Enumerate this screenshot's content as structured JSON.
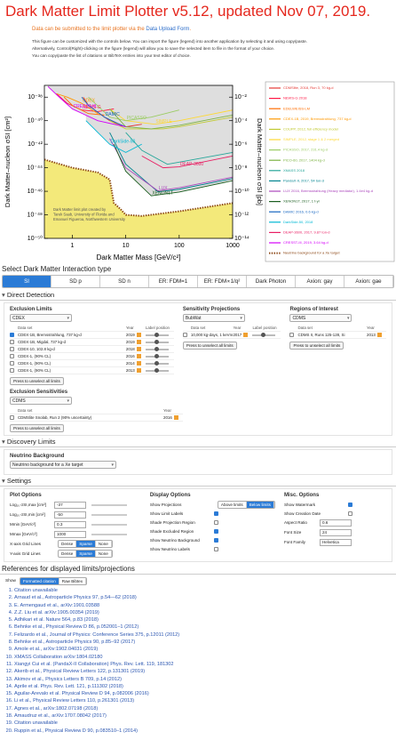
{
  "header": {
    "title": "Dark Matter Limit Plotter v5.12, updated Nov 07, 2019.",
    "upload_text": "Data can be submitted to the limit plotter via the",
    "upload_link": "Data Upload Form",
    "upload_end": ".",
    "intro": [
      "This figure can be customized with the controls below. You can import the figure (legend) into another application by selecting it and using copy/paste.",
      "Alternatively, Control(Right)-clicking on the figure (legend) will allow you to save the selected item to file in the format of your choice.",
      "You can copy/paste the list of citations or BibTeX entries into your text editor of choice."
    ]
  },
  "plot": {
    "xlabel": "Dark Matter Mass [GeV/c²]",
    "ylabel": "Dark Matter–nucleon σSI [cm²]",
    "y2label": "Dark Matter–nucleon σSI [pb]",
    "log_scale": true,
    "xlim": [
      0.3,
      1000
    ],
    "xticks": [
      1,
      10,
      100,
      1000
    ],
    "ylim": [
      1e-50,
      1e-37
    ],
    "yticks": [
      {
        "value": 1e-38,
        "label": "10⁻³⁸"
      },
      {
        "value": 1e-40,
        "label": "10⁻⁴⁰"
      },
      {
        "value": 1e-42,
        "label": "10⁻⁴²"
      },
      {
        "value": 1e-44,
        "label": "10⁻⁴⁴"
      },
      {
        "value": 1e-46,
        "label": "10⁻⁴⁶"
      },
      {
        "value": 1e-48,
        "label": "10⁻⁴⁸"
      },
      {
        "value": 1e-50,
        "label": "10⁻⁵⁰"
      }
    ],
    "y2lim": [
      1e-14,
      0.1
    ],
    "y2ticks": [
      {
        "value": 0.01,
        "label": "10⁻²"
      },
      {
        "value": 0.0001,
        "label": "10⁻⁴"
      },
      {
        "value": 1e-06,
        "label": "10⁻⁶"
      },
      {
        "value": 1e-08,
        "label": "10⁻⁸"
      },
      {
        "value": 1e-10,
        "label": "10⁻¹⁰"
      },
      {
        "value": 1e-12,
        "label": "10⁻¹²"
      },
      {
        "value": 1e-14,
        "label": "10⁻¹⁴"
      }
    ],
    "excluded_color": "#dedede",
    "watermark": [
      "Dark Matter limit plot created by",
      "Tarek Saab, University of Florida and",
      "Emanuel Figueroa, Northwestern University"
    ],
    "series": [
      {
        "name": "CDMSlite, 2018, Run 3, 70 kg-d",
        "color": "#e53935",
        "x": [
          1.6,
          2,
          3,
          5,
          10,
          20
        ],
        "values": [
          1e-38,
          2e-39,
          5e-40,
          1e-40,
          3e-41,
          5e-41
        ]
      },
      {
        "name": "NEWS-G 2018",
        "color": "#ff1744",
        "label": "NEWS-G",
        "x": [
          0.5,
          0.8,
          1.5,
          3,
          6
        ],
        "values": [
          2e-38,
          3e-39,
          8e-40,
          6e-40,
          1e-39
        ]
      },
      {
        "name": "EDELWEISS-LM",
        "color": "#ff6d00",
        "x": [
          0.7,
          1,
          2,
          4
        ],
        "values": [
          1e-38,
          2e-39,
          4e-40,
          3e-40
        ]
      },
      {
        "name": "CDEX-1B, 2019, Bremsstrahlung, 737 kg-d",
        "color": "#ff9800",
        "label": "CDEX",
        "x": [
          0.5,
          0.8,
          1.5,
          3
        ],
        "values": [
          2e-38,
          1e-38,
          3e-39,
          4e-40
        ]
      },
      {
        "name": "COUPP, 2012, full efficiency model",
        "color": "#c0ca33",
        "x": [
          5,
          10,
          50,
          100,
          1000
        ],
        "values": [
          1e-40,
          2e-41,
          2e-41,
          3e-41,
          2e-40
        ]
      },
      {
        "name": "SIMPLE, 2012, stage 1 & 2 merged",
        "color": "#fdd835",
        "label": "SIMPLE",
        "x": [
          5,
          10,
          35,
          100,
          1000
        ],
        "values": [
          1e-39,
          1e-40,
          5e-41,
          1e-40,
          8e-40
        ]
      },
      {
        "name": "PICASSO, 2017, 231.4 kg-d",
        "color": "#9ccc65",
        "label": "PICASSO",
        "x": [
          2,
          5,
          10,
          30,
          100
        ],
        "values": [
          1e-38,
          2e-40,
          1e-40,
          2e-40,
          8e-40
        ]
      },
      {
        "name": "PICO-60, 2017, 1404 kg-d",
        "color": "#7cb342",
        "x": [
          5,
          10,
          30,
          100,
          1000
        ],
        "values": [
          1e-39,
          3e-41,
          2e-41,
          4e-41,
          3e-40
        ]
      },
      {
        "name": "XMASS 2018",
        "color": "#26a69a",
        "x": [
          10,
          20,
          60,
          100,
          1000
        ],
        "values": [
          1e-41,
          3e-43,
          2e-44,
          3e-44,
          2e-43
        ]
      },
      {
        "name": "PandaX-II, 2017, 54 ton-d",
        "color": "#00838f",
        "x": [
          5,
          10,
          40,
          100,
          1000
        ],
        "values": [
          1e-41,
          2e-44,
          9e-47,
          1.5e-46,
          1.2e-45
        ]
      },
      {
        "name": "LUX 2016, Bremsstrahlung (Heavy mediator), 1.4e4 kg-d",
        "color": "#ab47bc",
        "label": "LUX",
        "x": [
          5,
          10,
          40,
          100,
          1000
        ],
        "values": [
          3e-42,
          1e-44,
          1.1e-46,
          2e-46,
          1.6e-45
        ]
      },
      {
        "name": "XENON1T, 2017, 1 t-yr",
        "color": "#1b5e20",
        "label": "XENON1T",
        "x": [
          6,
          10,
          30,
          100,
          1000
        ],
        "values": [
          1e-42,
          5e-45,
          4.1e-47,
          8.6e-47,
          8e-46
        ]
      },
      {
        "name": "DAMIC 2016, 0.6 kg-d",
        "color": "#1565c0",
        "label": "DAMIC",
        "x": [
          1.5,
          2,
          4,
          7,
          10
        ],
        "values": [
          1e-38,
          2e-39,
          2e-40,
          6e-41,
          3e-41
        ]
      },
      {
        "name": "DarkSide-50, 2018",
        "color": "#00b8d4",
        "label": "DarkSide-50",
        "x": [
          1.8,
          3,
          5,
          10,
          20
        ],
        "values": [
          1e-40,
          1e-41,
          1e-42,
          2e-43,
          1e-42
        ]
      },
      {
        "name": "DEAP-3600, 2017, 9.87 ton-d",
        "color": "#e91e63",
        "label": "DEAP-3600",
        "x": [
          20,
          50,
          100,
          1000
        ],
        "values": [
          1e-43,
          1e-44,
          1.2e-44,
          1e-43
        ]
      },
      {
        "name": "CRESST-III, 2019, 3.64 kg-d",
        "color": "#d500f9",
        "label": "CRESST-III",
        "x": [
          0.35,
          0.6,
          1,
          3,
          10
        ],
        "values": [
          8e-38,
          8e-39,
          1e-39,
          1e-40,
          3e-41
        ]
      },
      {
        "name": "Neutrino background for a Xe target",
        "color": "#8b4513",
        "style": "dotted",
        "shade": "#f3e97a",
        "x": [
          0.3,
          1,
          3,
          5,
          6,
          8,
          10,
          20,
          100,
          1000
        ],
        "values": [
          5e-44,
          1e-44,
          4e-45,
          1e-45,
          1e-47,
          3e-48,
          1e-48,
          8e-49,
          2e-48,
          1e-47
        ]
      }
    ]
  },
  "interaction": {
    "title": "Select Dark Matter Interaction type",
    "tabs": [
      "SI",
      "SD p",
      "SD n",
      "ER: FDM=1",
      "ER: FDM∝1/q²",
      "Dark Photon",
      "Axion: gaγ",
      "Axion: gae"
    ],
    "selected": 0
  },
  "direct_detection": {
    "title": "Direct Detection",
    "panels": [
      {
        "title": "Exclusion Limits",
        "select": "CDEX",
        "columns": [
          "Data set",
          "Year",
          "Label position"
        ],
        "rows": [
          {
            "name": "CDEX-1B, Bremsstrahlung, 737 kg-d",
            "year": 2019,
            "checked": true
          },
          {
            "name": "CDEX-1B, Migdal, 737 kg-d",
            "year": 2019,
            "checked": false
          },
          {
            "name": "CDEX-10, 102.8 kg-d",
            "year": 2018,
            "checked": false
          },
          {
            "name": "CDEX-1, (90% CL)",
            "year": 2016,
            "checked": false
          },
          {
            "name": "CDEX-1, (90% CL)",
            "year": 2014,
            "checked": false
          },
          {
            "name": "CDEX-1, (90% CL)",
            "year": 2013,
            "checked": false
          }
        ],
        "button": "Press to unselect all limits"
      },
      {
        "title": "Sensitivity Projections",
        "select": "BubWat",
        "columns": [
          "Data set",
          "Year",
          "Label position"
        ],
        "rows": [
          {
            "name": "10,000 kg-days, 1 keVnr",
            "year": 2017,
            "checked": false
          }
        ],
        "button": "Press to unselect all limits"
      },
      {
        "title": "Regions of Interest",
        "select": "CDMS",
        "columns": [
          "Data set",
          "Year"
        ],
        "rows": [
          {
            "name": "CDMS II, Runs 125-128, Si",
            "year": 2013,
            "checked": false
          }
        ],
        "button": "Press to unselect all limits"
      }
    ],
    "sensitivities": {
      "title": "Exclusion Sensitivities",
      "select": "CDMS",
      "columns": [
        "Data set",
        "Year"
      ],
      "rows": [
        {
          "name": "CDMSlite Snolab, Run 2 (90% uncertainty)",
          "year": 2016,
          "checked": false
        }
      ],
      "button": "Press to unselect all limits"
    }
  },
  "discovery": {
    "title": "Discovery Limits",
    "label": "Neutrino Background",
    "select": "Neutrino background for a Xe target"
  },
  "settings": {
    "title": "Settings",
    "plot_options": {
      "title": "Plot Options",
      "fields": [
        {
          "label": "Log₁₀ σSI,max [cm²]",
          "value": -37
        },
        {
          "label": "Log₁₀ σSI,min [cm²]",
          "value": -50
        },
        {
          "label": "Mmin [GeV/c²]",
          "value": 0.3
        },
        {
          "label": "Mmax [GeV/c²]",
          "value": 1000
        }
      ],
      "grids": [
        {
          "label": "X-axis Grid Lines",
          "options": [
            "Dense",
            "Sparse",
            "None"
          ],
          "selected": 1
        },
        {
          "label": "Y-axis Grid Lines",
          "options": [
            "Dense",
            "Sparse",
            "None"
          ],
          "selected": 1
        }
      ]
    },
    "display_options": {
      "title": "Display Options",
      "projections": {
        "label": "Show Projections",
        "options": [
          "Above limits",
          "Below limits"
        ],
        "selected": 1
      },
      "checks": [
        {
          "label": "Show Limit Labels",
          "checked": true
        },
        {
          "label": "Shade Projection Region",
          "checked": false
        },
        {
          "label": "Shade Excluded Region",
          "checked": true
        },
        {
          "label": "Show Neutrino Background",
          "checked": true
        },
        {
          "label": "Show Neutrino Labels",
          "checked": false
        }
      ]
    },
    "misc_options": {
      "title": "Misc. Options",
      "checks": [
        {
          "label": "Show Watermark",
          "checked": true
        },
        {
          "label": "Show Creation Date",
          "checked": false
        }
      ],
      "fields": [
        {
          "label": "Aspect Ratio",
          "value": 0.6
        },
        {
          "label": "Font Size",
          "value": 24
        },
        {
          "label": "Font Family",
          "value": "Helvetica"
        }
      ]
    }
  },
  "references": {
    "title": "References for displayed limits/projections",
    "show": "Show",
    "options": [
      "Formatted citation",
      "Raw Bibtex"
    ],
    "selected": 0,
    "items": [
      "Citation unavailable",
      "Arnaud et al., Astroparticle Physics 97, p.54—62 (2018)",
      "E. Armengaud et al., arXiv:1901.03588",
      "Z.Z. Liu et al. arXiv:1905.00354 (2019)",
      "Adhikari et al. Nature 564, p.83 (2018)",
      "Behnke et al., Physical Review D 86, p.052001–1 (2012)",
      "Felizardo et al., Journal of Physics: Conference Series 375, p.12011 (2012)",
      "Behnke et al., Astroparticle Physics 90, p.85–92 (2017)",
      "Amole et al., arXiv:1902.04031 (2019)",
      "XMASS Collaboration arXiv:1804.02180",
      "Xiangyi Cui et al. (PandaX-II Collaboration) Phys. Rev. Lett. 119, 181302",
      "Akerib et al., Physical Review Letters 122, p.131301 (2019)",
      "Akimov et al., Physics Letters B 709, p.14 (2012)",
      "Aprile et al. Phys. Rev. Lett. 121, p.111302 (2018)",
      "Aguilar-Arevalo et al. Physical Review D 94, p.082006 (2016)",
      "Li et al., Physical Review Letters 110, p.261301 (2013)",
      "Agnes et al., arXiv:1802.07198 (2018)",
      "Amaudruz et al., arXiv:1707.08042 (2017)",
      "Citation unavailable",
      "Ruppin et al., Physical Review D 90, p.083510–1 (2014)"
    ]
  }
}
